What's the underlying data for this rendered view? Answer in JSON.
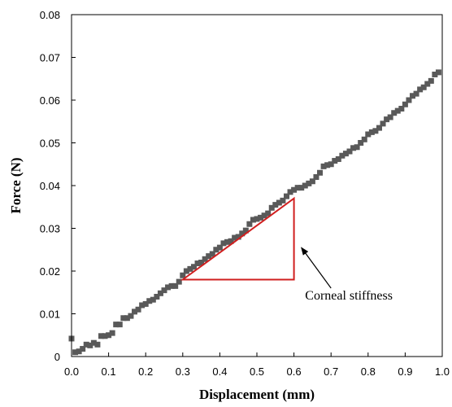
{
  "chart_data": {
    "type": "scatter",
    "title": "",
    "xlabel": "Displacement (mm)",
    "ylabel": "Force (N)",
    "xlim": [
      0,
      1.0
    ],
    "ylim": [
      0,
      0.08
    ],
    "x_ticks": [
      "0.0",
      "0.1",
      "0.2",
      "0.3",
      "0.4",
      "0.5",
      "0.6",
      "0.7",
      "0.8",
      "0.9",
      "1.0"
    ],
    "y_ticks": [
      "0",
      "0.01",
      "0.02",
      "0.03",
      "0.04",
      "0.05",
      "0.06",
      "0.07",
      "0.08"
    ],
    "grid": false,
    "legend": "none",
    "marker_color": "#595959",
    "annotation_color": "#d01f1f",
    "series": [
      {
        "x": [
          0.0,
          0.01,
          0.02,
          0.03,
          0.04,
          0.05,
          0.06,
          0.07,
          0.08,
          0.09,
          0.1,
          0.11,
          0.12,
          0.13,
          0.14,
          0.15,
          0.16,
          0.17,
          0.18,
          0.19,
          0.2,
          0.21,
          0.22,
          0.23,
          0.24,
          0.25,
          0.26,
          0.27,
          0.28,
          0.29,
          0.3,
          0.31,
          0.32,
          0.33,
          0.34,
          0.35,
          0.36,
          0.37,
          0.38,
          0.39,
          0.4,
          0.41,
          0.42,
          0.43,
          0.44,
          0.45,
          0.46,
          0.47,
          0.48,
          0.49,
          0.5,
          0.51,
          0.52,
          0.53,
          0.54,
          0.55,
          0.56,
          0.57,
          0.58,
          0.59,
          0.6,
          0.61,
          0.62,
          0.63,
          0.64,
          0.65,
          0.66,
          0.67,
          0.68,
          0.69,
          0.7,
          0.71,
          0.72,
          0.73,
          0.74,
          0.75,
          0.76,
          0.77,
          0.78,
          0.79,
          0.8,
          0.81,
          0.82,
          0.83,
          0.84,
          0.85,
          0.86,
          0.87,
          0.88,
          0.89,
          0.9,
          0.91,
          0.92,
          0.93,
          0.94,
          0.95,
          0.96,
          0.97,
          0.98,
          0.99
        ],
        "y": [
          0.0042,
          0.001,
          0.0012,
          0.0018,
          0.0028,
          0.0026,
          0.0032,
          0.0028,
          0.0048,
          0.0048,
          0.005,
          0.0055,
          0.0075,
          0.0075,
          0.009,
          0.009,
          0.0095,
          0.0105,
          0.011,
          0.012,
          0.0123,
          0.013,
          0.0133,
          0.014,
          0.0148,
          0.0155,
          0.0162,
          0.0165,
          0.0165,
          0.0175,
          0.019,
          0.02,
          0.0205,
          0.021,
          0.0218,
          0.022,
          0.0228,
          0.0235,
          0.024,
          0.025,
          0.0255,
          0.0265,
          0.0268,
          0.027,
          0.0278,
          0.028,
          0.0288,
          0.0295,
          0.031,
          0.032,
          0.0322,
          0.0325,
          0.033,
          0.0335,
          0.0348,
          0.0355,
          0.036,
          0.0365,
          0.0375,
          0.0385,
          0.039,
          0.0395,
          0.0395,
          0.04,
          0.0405,
          0.041,
          0.042,
          0.043,
          0.0445,
          0.0448,
          0.045,
          0.0458,
          0.0462,
          0.047,
          0.0475,
          0.048,
          0.0488,
          0.049,
          0.05,
          0.0508,
          0.052,
          0.0525,
          0.0528,
          0.0535,
          0.0545,
          0.0555,
          0.056,
          0.057,
          0.0575,
          0.058,
          0.059,
          0.06,
          0.061,
          0.0615,
          0.0625,
          0.063,
          0.0638,
          0.0645,
          0.066,
          0.0665
        ]
      }
    ],
    "annotations": [
      {
        "type": "triangle",
        "vertices": [
          [
            0.3,
            0.018
          ],
          [
            0.6,
            0.037
          ],
          [
            0.6,
            0.018
          ]
        ]
      },
      {
        "type": "arrow",
        "text": "Corneal stiffness",
        "from": [
          0.7,
          0.016
        ],
        "to": [
          0.62,
          0.0255
        ]
      }
    ]
  }
}
